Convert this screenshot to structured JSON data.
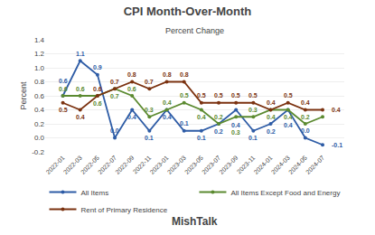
{
  "chart_data": {
    "type": "line",
    "title": "CPI Month-Over-Month",
    "subtitle": "Percent Change",
    "xlabel": "MishTalk",
    "ylabel": "Percent",
    "categories": [
      "2022-01",
      "2022-03",
      "2022-05",
      "2022-07",
      "2022-09",
      "2022-11",
      "2023-01",
      "2023-03",
      "2023-05",
      "2023-07",
      "2023-09",
      "2023-11",
      "2024-01",
      "2024-03",
      "2024-05",
      "2024-07"
    ],
    "series": [
      {
        "name": "All Items",
        "color": "#2E5CA6",
        "values": [
          0.6,
          1.1,
          0.9,
          0.0,
          0.4,
          0.1,
          0.4,
          0.1,
          0.1,
          0.2,
          0.4,
          0.1,
          0.2,
          0.4,
          0.0,
          -0.1
        ],
        "value_labels": [
          "0.6",
          "1.1",
          "0.9",
          "0.0",
          "0.4",
          "0.1",
          "0.4",
          "0.1",
          "0.1",
          "0.2",
          "0.4",
          "0.1",
          "0.2",
          "0.4",
          "0.0",
          "-0.1"
        ]
      },
      {
        "name": "All Items Except Food and Energy",
        "color": "#5B8A30",
        "values": [
          0.6,
          0.6,
          0.6,
          0.7,
          0.6,
          0.3,
          0.4,
          0.5,
          0.4,
          0.2,
          0.3,
          0.3,
          0.4,
          0.4,
          0.2,
          0.3
        ],
        "value_labels": [
          "0.6",
          "0.6",
          "0.6",
          "0.7",
          "0.6",
          "0.3",
          "0.4",
          "0.5",
          "0.4",
          "0.2",
          "0.3",
          "0.3",
          "0.4",
          "0.4",
          "0.2",
          null
        ]
      },
      {
        "name": "Rent of Primary Residence",
        "color": "#7B3210",
        "values": [
          0.5,
          0.4,
          0.6,
          0.7,
          0.8,
          0.7,
          0.8,
          0.8,
          0.5,
          0.5,
          0.5,
          0.5,
          0.4,
          0.5,
          0.4,
          0.4
        ]
      }
    ],
    "ylim": [
      -0.2,
      1.4
    ],
    "yticks": [
      -0.2,
      {
        "value": 0.0,
        "label": "0.0"
      },
      0.2,
      0.4,
      0.6,
      0.8,
      {
        "value": 1.0,
        "label": "1.0"
      },
      1.2,
      1.4
    ],
    "grid": true,
    "legend": "bottom",
    "data_labels": true,
    "marker": "circle",
    "line_style": "solid"
  }
}
